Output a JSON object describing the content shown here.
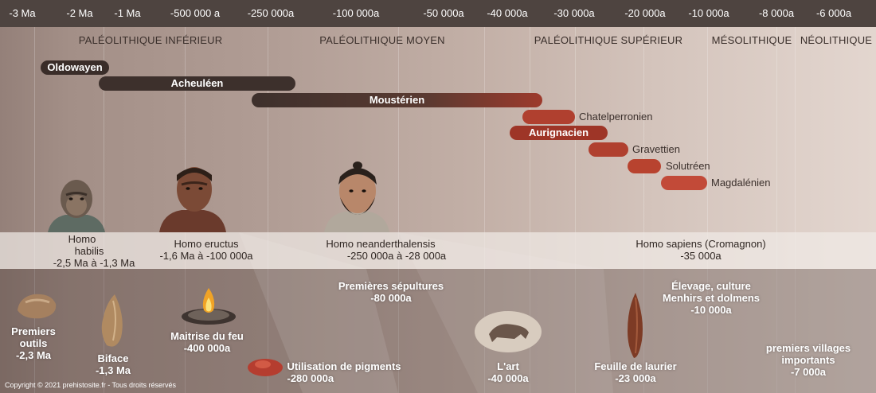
{
  "timeline": {
    "ticks": [
      "-3 Ma",
      "-2 Ma",
      "-1 Ma",
      "-500 000 a",
      "-250 000a",
      "-100 000a",
      "-50 000a",
      "-40 000a",
      "-30 000a",
      "-20 000a",
      "-10 000a",
      "-8 000a",
      "-6 000a"
    ],
    "periods": [
      "PALÉOLITHIQUE INFÉRIEUR",
      "PALÉOLITHIQUE MOYEN",
      "PALÉOLITHIQUE SUPÉRIEUR",
      "MÉSOLITHIQUE",
      "NÉOLITHIQUE"
    ]
  },
  "cultures": [
    "Oldowayen",
    "Acheuléen",
    "Moustérien",
    "Chatelperronien",
    "Aurignacien",
    "Gravettien",
    "Solutréen",
    "Magdalénien"
  ],
  "hominids": [
    {
      "name1": "Homo",
      "name2": "habilis",
      "dates": "-2,5 Ma à -1,3 Ma"
    },
    {
      "name": "Homo eructus",
      "dates": "-1,6 Ma à -100 000a"
    },
    {
      "name": "Homo neanderthalensis",
      "dates": "-250 000a à -28 000a"
    },
    {
      "name": "Homo sapiens (Cromagnon)",
      "dates": "-35 000a"
    }
  ],
  "events": [
    {
      "line1": "Premiers",
      "line2": "outils",
      "date": "-2,3 Ma"
    },
    {
      "line1": "Biface",
      "date": "-1,3 Ma"
    },
    {
      "line1": "Maitrise du feu",
      "date": "-400 000a"
    },
    {
      "line1": "Utilisation de pigments",
      "date": "-280 000a"
    },
    {
      "line1": "Premières sépultures",
      "date": "-80 000a"
    },
    {
      "line1": "L'art",
      "date": "-40 000a"
    },
    {
      "line1": "Feuille de laurier",
      "date": "-23 000a"
    },
    {
      "line1": "Élevage, culture",
      "line2": "Menhirs et dolmens",
      "date": "-10 000a"
    },
    {
      "line1": "premiers villages",
      "line2": "importants",
      "date": "-7 000a"
    }
  ],
  "copyright": "Copyright © 2021 prehistosite.fr - Tous droits réservés",
  "colors": {
    "topbar": "#4e4440",
    "dark_bar": "#3d302c",
    "red_bar": "#a5392b",
    "light_red_bar": "#c24a38"
  }
}
